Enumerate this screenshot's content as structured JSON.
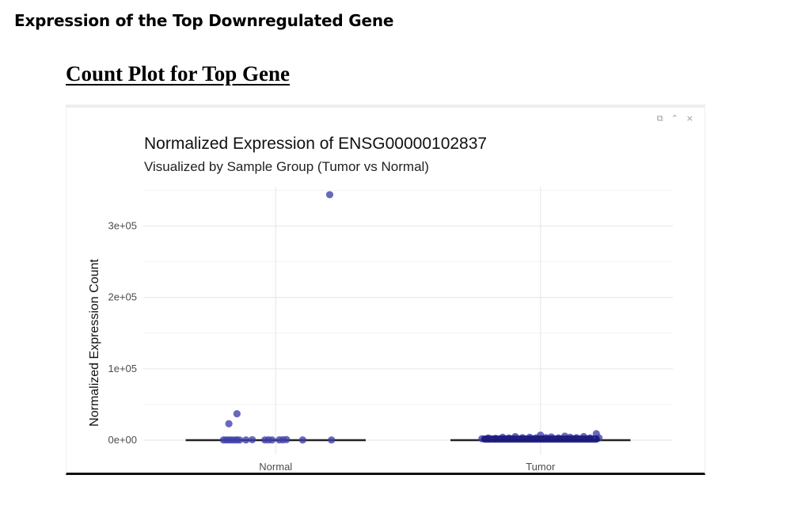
{
  "document": {
    "section_heading": "Expression of the Top Downregulated Gene",
    "plot_heading": "Count Plot for Top Gene"
  },
  "toolbar": {
    "icons": [
      "copy-icon",
      "collapse-icon",
      "close-icon"
    ],
    "copy_glyph": "⧉",
    "collapse_glyph": "⌃",
    "close_glyph": "×"
  },
  "chart_data": {
    "type": "scatter",
    "title": "Normalized Expression of ENSG00000102837",
    "subtitle": "Visualized by Sample Group (Tumor vs Normal)",
    "xlabel": "",
    "ylabel": "Normalized Expression Count",
    "categories": [
      "Normal",
      "Tumor"
    ],
    "ylim": [
      -20000,
      355000
    ],
    "yticks": [
      0,
      100000,
      200000,
      300000
    ],
    "ytick_labels": [
      "0e+00",
      "1e+05",
      "2e+05",
      "3e+05"
    ],
    "grid": true,
    "point_color": "#3f3fa8",
    "boxplot": true,
    "series": [
      {
        "category": "Normal",
        "points": [
          {
            "offset": 0.6,
            "y": 344000
          },
          {
            "offset": -0.43,
            "y": 37000
          },
          {
            "offset": -0.52,
            "y": 23000
          },
          {
            "offset": -0.58,
            "y": 300
          },
          {
            "offset": -0.55,
            "y": 300
          },
          {
            "offset": -0.52,
            "y": 300
          },
          {
            "offset": -0.49,
            "y": 300
          },
          {
            "offset": -0.46,
            "y": 200
          },
          {
            "offset": -0.43,
            "y": 400
          },
          {
            "offset": -0.4,
            "y": 200
          },
          {
            "offset": -0.33,
            "y": 300
          },
          {
            "offset": -0.26,
            "y": 600
          },
          {
            "offset": -0.12,
            "y": 300
          },
          {
            "offset": -0.08,
            "y": 400
          },
          {
            "offset": -0.04,
            "y": 300
          },
          {
            "offset": 0.04,
            "y": 400
          },
          {
            "offset": 0.08,
            "y": 500
          },
          {
            "offset": 0.12,
            "y": 800
          },
          {
            "offset": 0.3,
            "y": 300
          },
          {
            "offset": 0.62,
            "y": 300
          }
        ]
      },
      {
        "category": "Tumor",
        "points": [
          {
            "offset": -0.65,
            "y": 2000
          },
          {
            "offset": -0.58,
            "y": 3000
          },
          {
            "offset": -0.5,
            "y": 2500
          },
          {
            "offset": -0.42,
            "y": 4000
          },
          {
            "offset": -0.35,
            "y": 3000
          },
          {
            "offset": -0.28,
            "y": 5000
          },
          {
            "offset": -0.2,
            "y": 3500
          },
          {
            "offset": -0.12,
            "y": 4000
          },
          {
            "offset": -0.05,
            "y": 3000
          },
          {
            "offset": 0.0,
            "y": 7000
          },
          {
            "offset": 0.06,
            "y": 3500
          },
          {
            "offset": 0.12,
            "y": 4500
          },
          {
            "offset": 0.2,
            "y": 3000
          },
          {
            "offset": 0.27,
            "y": 5500
          },
          {
            "offset": 0.33,
            "y": 4000
          },
          {
            "offset": 0.4,
            "y": 3500
          },
          {
            "offset": 0.48,
            "y": 5000
          },
          {
            "offset": 0.55,
            "y": 3000
          },
          {
            "offset": 0.62,
            "y": 9000
          },
          {
            "offset": 0.65,
            "y": 3000
          }
        ]
      }
    ]
  }
}
